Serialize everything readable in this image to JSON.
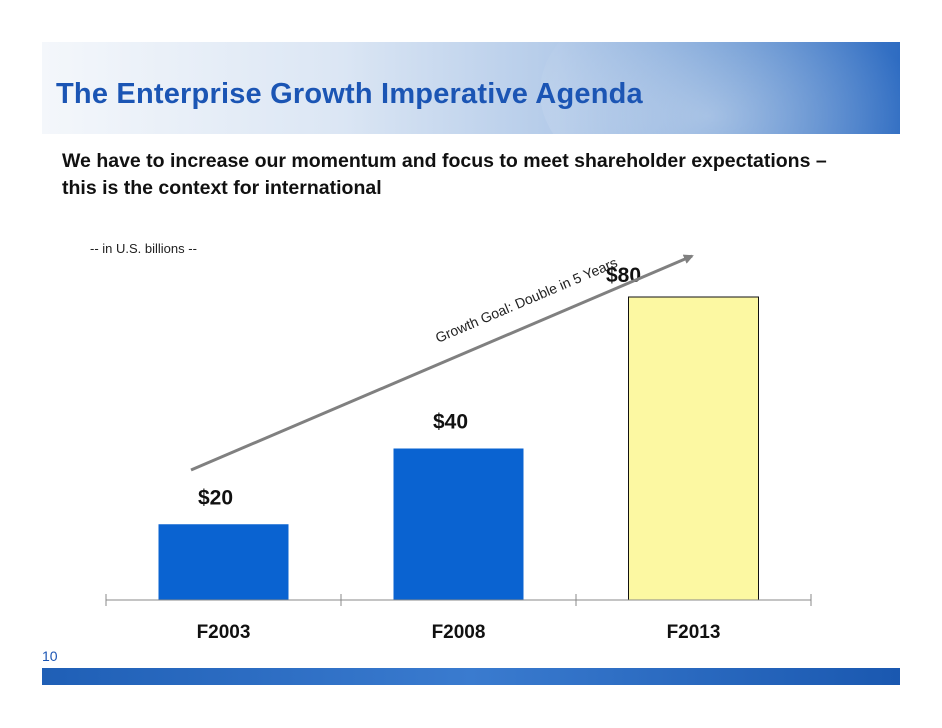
{
  "slide": {
    "title": "The Enterprise Growth Imperative Agenda",
    "subtitle": "We have to increase our momentum and focus to meet shareholder expectations – this is the context for international",
    "page_number": "10"
  },
  "colors": {
    "title_text": "#1b55b4",
    "bar_blue": "#0a63d1",
    "bar_yellow": "#fcf8a2",
    "arrow": "#808080",
    "footer": "#1f5fb6"
  },
  "chart_data": {
    "type": "bar",
    "units_note": "-- in U.S. billions --",
    "categories": [
      "F2003",
      "F2008",
      "F2013"
    ],
    "values": [
      20,
      40,
      80
    ],
    "value_labels": [
      "$20",
      "$40",
      "$80"
    ],
    "bar_colors": [
      "#0a63d1",
      "#0a63d1",
      "#fcf8a2"
    ],
    "ylim": [
      0,
      80
    ],
    "grid": false,
    "annotation": "Growth Goal: Double in 5 Years"
  }
}
